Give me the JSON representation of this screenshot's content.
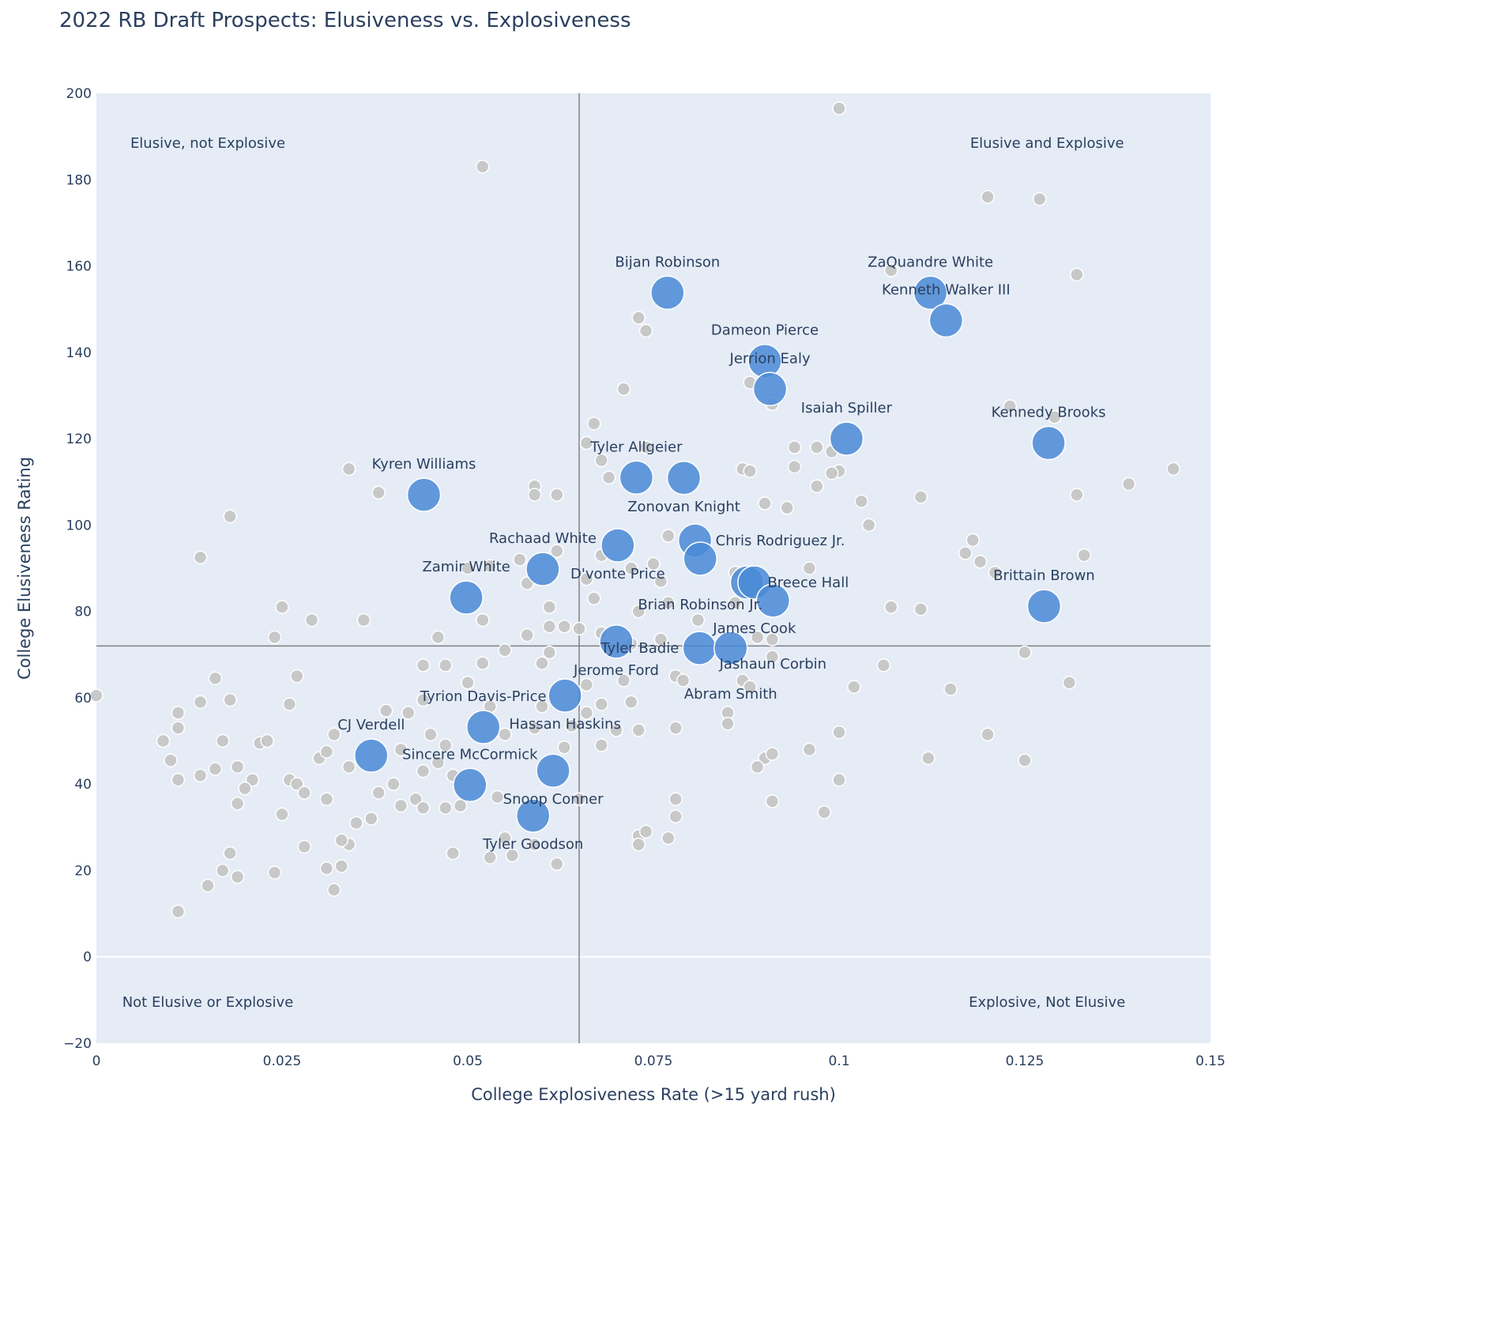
{
  "chart_data": {
    "type": "scatter",
    "title": "2022 RB Draft Prospects: Elusiveness vs. Explosiveness",
    "xlabel": "College Explosiveness Rate (>15 yard rush)",
    "ylabel": "College Elusiveness Rating",
    "xlim": [
      0,
      0.15
    ],
    "ylim": [
      -20,
      200
    ],
    "xticks": [
      0,
      0.025,
      0.05,
      0.075,
      0.1,
      0.125,
      0.15
    ],
    "xtick_labels": [
      "0",
      "0.025",
      "0.05",
      "0.075",
      "0.1",
      "0.125",
      "0.15"
    ],
    "yticks": [
      -20,
      0,
      20,
      40,
      60,
      80,
      100,
      120,
      140,
      160,
      180,
      200
    ],
    "ytick_labels": [
      "−20",
      "0",
      "20",
      "40",
      "60",
      "80",
      "100",
      "120",
      "140",
      "160",
      "180",
      "200"
    ],
    "grid": false,
    "reference_lines": {
      "x_mean": 0.065,
      "y_mean": 72
    },
    "annotations": [
      {
        "text": "Elusive, not Explosive",
        "x": 0.015,
        "y": 188.5
      },
      {
        "text": "Elusive and Explosive",
        "x": 0.128,
        "y": 188.5
      },
      {
        "text": "Not Elusive or Explosive",
        "x": 0.015,
        "y": -10.5
      },
      {
        "text": "Explosive, Not Elusive",
        "x": 0.128,
        "y": -10.5
      }
    ],
    "colors": {
      "prospect": "#4a89d6",
      "other": "#c4c4c4",
      "background": "#e5ecf6",
      "mean_line": "#808080"
    },
    "prospects": [
      {
        "name": "Bijan Robinson",
        "x": 0.0769,
        "y": 153.8
      },
      {
        "name": "ZaQuandre White",
        "x": 0.1123,
        "y": 153.8
      },
      {
        "name": "Kenneth Walker III",
        "x": 0.1144,
        "y": 147.4
      },
      {
        "name": "Dameon Pierce",
        "x": 0.09,
        "y": 138.0
      },
      {
        "name": "Jerrion Ealy",
        "x": 0.0907,
        "y": 131.5
      },
      {
        "name": "Isaiah Spiller",
        "x": 0.101,
        "y": 120.0
      },
      {
        "name": "Kennedy Brooks",
        "x": 0.1282,
        "y": 119.0
      },
      {
        "name": "Kyren Williams",
        "x": 0.0441,
        "y": 107.0
      },
      {
        "name": "Tyler Allgeier",
        "x": 0.0727,
        "y": 111.0
      },
      {
        "name": "Zonovan Knight",
        "x": 0.0791,
        "y": 110.9
      },
      {
        "name": "D'vonte Price",
        "x": 0.0702,
        "y": 95.3
      },
      {
        "name": "Chris Rodriguez Jr.",
        "x": 0.0806,
        "y": 96.4
      },
      {
        "name": "Brian Robinson Jr.",
        "x": 0.0813,
        "y": 92.2
      },
      {
        "name": "Rachaad White",
        "x": 0.0601,
        "y": 89.8
      },
      {
        "name": "Zamir White",
        "x": 0.0498,
        "y": 83.2
      },
      {
        "name": "Breece Hall",
        "x": 0.0876,
        "y": 86.7
      },
      {
        "name": "James Cook",
        "x": 0.0886,
        "y": 86.7
      },
      {
        "name": "Jashaun Corbin",
        "x": 0.0911,
        "y": 82.5
      },
      {
        "name": "Brittain Brown",
        "x": 0.1276,
        "y": 81.2
      },
      {
        "name": "Jerome Ford",
        "x": 0.07,
        "y": 73.0
      },
      {
        "name": "Tyler Badie",
        "x": 0.0812,
        "y": 71.5
      },
      {
        "name": "Abram Smith",
        "x": 0.0854,
        "y": 71.5
      },
      {
        "name": "Hassan Haskins",
        "x": 0.0631,
        "y": 60.5
      },
      {
        "name": "Tyrion Davis-Price",
        "x": 0.0521,
        "y": 53.2
      },
      {
        "name": "CJ Verdell",
        "x": 0.037,
        "y": 46.6
      },
      {
        "name": "Snoop Conner",
        "x": 0.0615,
        "y": 43.1
      },
      {
        "name": "Sincere McCormick",
        "x": 0.0503,
        "y": 39.8
      },
      {
        "name": "Tyler Goodson",
        "x": 0.0588,
        "y": 32.7
      }
    ],
    "others": [
      [
        0.1,
        196.5
      ],
      [
        0.052,
        183
      ],
      [
        0.12,
        176
      ],
      [
        0.127,
        175.5
      ],
      [
        0.132,
        158
      ],
      [
        0.107,
        159
      ],
      [
        0.073,
        148
      ],
      [
        0.074,
        145
      ],
      [
        0.071,
        131.5
      ],
      [
        0.088,
        133
      ],
      [
        0.091,
        128
      ],
      [
        0.123,
        127.5
      ],
      [
        0.129,
        125
      ],
      [
        0.067,
        123.5
      ],
      [
        0.066,
        119
      ],
      [
        0.068,
        115
      ],
      [
        0.074,
        118
      ],
      [
        0.097,
        118
      ],
      [
        0.099,
        117
      ],
      [
        0.094,
        118
      ],
      [
        0.034,
        113
      ],
      [
        0.087,
        113
      ],
      [
        0.088,
        112.5
      ],
      [
        0.094,
        113.5
      ],
      [
        0.1,
        112.5
      ],
      [
        0.099,
        112
      ],
      [
        0.145,
        113
      ],
      [
        0.139,
        109.5
      ],
      [
        0.097,
        109
      ],
      [
        0.059,
        109
      ],
      [
        0.062,
        107
      ],
      [
        0.038,
        107.5
      ],
      [
        0.059,
        107
      ],
      [
        0.069,
        111
      ],
      [
        0.111,
        106.5
      ],
      [
        0.103,
        105.5
      ],
      [
        0.132,
        107
      ],
      [
        0.09,
        105
      ],
      [
        0.093,
        104
      ],
      [
        0.104,
        100
      ],
      [
        0.018,
        102
      ],
      [
        0.077,
        97.5
      ],
      [
        0.068,
        93
      ],
      [
        0.062,
        94
      ],
      [
        0.118,
        96.5
      ],
      [
        0.117,
        93.5
      ],
      [
        0.119,
        91.5
      ],
      [
        0.121,
        89
      ],
      [
        0.133,
        93
      ],
      [
        0.014,
        92.5
      ],
      [
        0.057,
        92
      ],
      [
        0.075,
        91
      ],
      [
        0.072,
        90
      ],
      [
        0.066,
        87.5
      ],
      [
        0.058,
        86.5
      ],
      [
        0.076,
        87
      ],
      [
        0.05,
        90
      ],
      [
        0.053,
        90.5
      ],
      [
        0.096,
        90
      ],
      [
        0.086,
        89
      ],
      [
        0.067,
        83
      ],
      [
        0.077,
        82
      ],
      [
        0.086,
        82
      ],
      [
        0.107,
        81
      ],
      [
        0.111,
        80.5
      ],
      [
        0.025,
        81
      ],
      [
        0.061,
        81
      ],
      [
        0.073,
        80
      ],
      [
        0.052,
        78
      ],
      [
        0.029,
        78
      ],
      [
        0.036,
        78
      ],
      [
        0.081,
        78
      ],
      [
        0.061,
        76.5
      ],
      [
        0.063,
        76.5
      ],
      [
        0.065,
        76
      ],
      [
        0.058,
        74.5
      ],
      [
        0.046,
        74
      ],
      [
        0.024,
        74
      ],
      [
        0.068,
        75
      ],
      [
        0.072,
        72.5
      ],
      [
        0.076,
        73.5
      ],
      [
        0.089,
        74
      ],
      [
        0.091,
        73.5
      ],
      [
        0.125,
        70.5
      ],
      [
        0.055,
        71
      ],
      [
        0.061,
        70.5
      ],
      [
        0.044,
        67.5
      ],
      [
        0.047,
        67.5
      ],
      [
        0.052,
        68
      ],
      [
        0.06,
        68
      ],
      [
        0.078,
        65
      ],
      [
        0.091,
        69.5
      ],
      [
        0.106,
        67.5
      ],
      [
        0.016,
        64.5
      ],
      [
        0.027,
        65
      ],
      [
        0.05,
        63.5
      ],
      [
        0.066,
        63
      ],
      [
        0.071,
        64
      ],
      [
        0.079,
        64
      ],
      [
        0.087,
        64
      ],
      [
        0.088,
        62.5
      ],
      [
        0.102,
        62.5
      ],
      [
        0.115,
        62
      ],
      [
        0.131,
        63.5
      ],
      [
        0.0,
        60.5
      ],
      [
        0.011,
        56.5
      ],
      [
        0.014,
        59
      ],
      [
        0.018,
        59.5
      ],
      [
        0.026,
        58.5
      ],
      [
        0.039,
        57
      ],
      [
        0.042,
        56.5
      ],
      [
        0.044,
        59.5
      ],
      [
        0.053,
        58
      ],
      [
        0.06,
        58
      ],
      [
        0.068,
        58.5
      ],
      [
        0.072,
        59
      ],
      [
        0.066,
        56.5
      ],
      [
        0.085,
        56.5
      ],
      [
        0.011,
        53
      ],
      [
        0.032,
        51.5
      ],
      [
        0.045,
        51.5
      ],
      [
        0.055,
        51.5
      ],
      [
        0.059,
        53
      ],
      [
        0.064,
        53.5
      ],
      [
        0.07,
        52.5
      ],
      [
        0.073,
        52.5
      ],
      [
        0.078,
        53
      ],
      [
        0.085,
        54
      ],
      [
        0.1,
        52
      ],
      [
        0.12,
        51.5
      ],
      [
        0.009,
        50
      ],
      [
        0.017,
        50
      ],
      [
        0.022,
        49.5
      ],
      [
        0.023,
        50
      ],
      [
        0.03,
        46
      ],
      [
        0.031,
        47.5
      ],
      [
        0.041,
        48
      ],
      [
        0.047,
        49
      ],
      [
        0.063,
        48.5
      ],
      [
        0.068,
        49
      ],
      [
        0.01,
        45.5
      ],
      [
        0.016,
        43.5
      ],
      [
        0.019,
        44
      ],
      [
        0.014,
        42
      ],
      [
        0.011,
        41
      ],
      [
        0.021,
        41
      ],
      [
        0.02,
        39
      ],
      [
        0.026,
        41
      ],
      [
        0.027,
        40
      ],
      [
        0.034,
        44
      ],
      [
        0.04,
        40
      ],
      [
        0.044,
        43
      ],
      [
        0.048,
        42
      ],
      [
        0.046,
        45
      ],
      [
        0.096,
        48
      ],
      [
        0.09,
        46
      ],
      [
        0.091,
        47
      ],
      [
        0.089,
        44
      ],
      [
        0.112,
        46
      ],
      [
        0.125,
        45.5
      ],
      [
        0.1,
        41
      ],
      [
        0.019,
        35.5
      ],
      [
        0.028,
        38
      ],
      [
        0.031,
        36.5
      ],
      [
        0.038,
        38
      ],
      [
        0.041,
        35
      ],
      [
        0.043,
        36.5
      ],
      [
        0.044,
        34.5
      ],
      [
        0.047,
        34.5
      ],
      [
        0.049,
        35
      ],
      [
        0.054,
        37
      ],
      [
        0.065,
        36.5
      ],
      [
        0.078,
        36.5
      ],
      [
        0.078,
        32.5
      ],
      [
        0.091,
        36
      ],
      [
        0.098,
        33.5
      ],
      [
        0.025,
        33
      ],
      [
        0.035,
        31
      ],
      [
        0.037,
        32
      ],
      [
        0.034,
        26
      ],
      [
        0.033,
        27
      ],
      [
        0.028,
        25.5
      ],
      [
        0.018,
        24
      ],
      [
        0.017,
        20
      ],
      [
        0.019,
        18.5
      ],
      [
        0.024,
        19.5
      ],
      [
        0.031,
        20.5
      ],
      [
        0.033,
        21
      ],
      [
        0.032,
        15.5
      ],
      [
        0.015,
        16.5
      ],
      [
        0.011,
        10.5
      ],
      [
        0.048,
        24
      ],
      [
        0.053,
        23
      ],
      [
        0.055,
        27.5
      ],
      [
        0.056,
        23.5
      ],
      [
        0.059,
        26
      ],
      [
        0.062,
        21.5
      ],
      [
        0.073,
        28
      ],
      [
        0.074,
        29
      ],
      [
        0.073,
        26
      ],
      [
        0.077,
        27.5
      ]
    ]
  }
}
